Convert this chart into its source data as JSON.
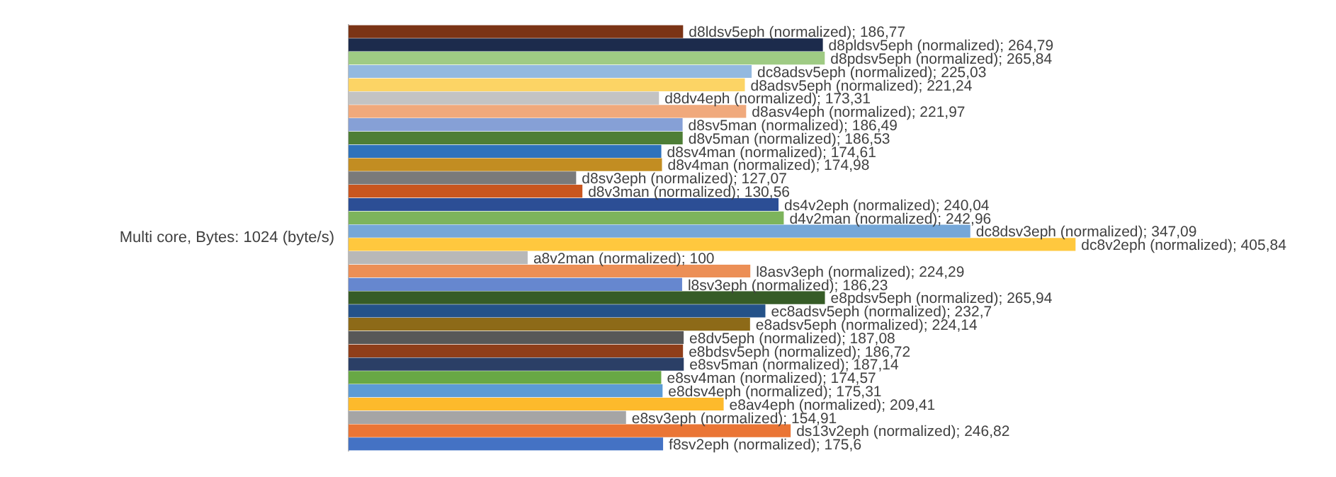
{
  "chart_data": {
    "type": "bar",
    "orientation": "horizontal",
    "ylabel": "Multi core, Bytes: 1024 (byte/s)",
    "categories": [
      null,
      null,
      null,
      null,
      null,
      null,
      null,
      null,
      null,
      null,
      null,
      null,
      null,
      null,
      null,
      null,
      null,
      null,
      null,
      null,
      null,
      null,
      null,
      null,
      null,
      null,
      null,
      null,
      null,
      null,
      null,
      null
    ],
    "values": [
      186.77,
      264.79,
      265.84,
      225.03,
      221.24,
      173.31,
      221.97,
      186.49,
      186.53,
      174.61,
      174.98,
      127.07,
      130.56,
      240.04,
      242.96,
      347.09,
      405.84,
      100,
      224.29,
      186.23,
      265.94,
      232.7,
      224.14,
      187.08,
      186.72,
      187.14,
      174.57,
      175.31,
      209.41,
      154.91,
      246.82,
      175.6
    ],
    "colors": [
      "#7b3416",
      "#1c2b4c",
      "#9fcb84",
      "#93b9df",
      "#fcd465",
      "#c3c3c3",
      "#f0a97c",
      "#86a0d6",
      "#4e7e36",
      "#2e72bb",
      "#c28d22",
      "#7a7a7a",
      "#c9561f",
      "#2c4e95",
      "#7db45c",
      "#75a7d8",
      "#ffc83e",
      "#b8b8b8",
      "#ec8f56",
      "#6687cf",
      "#365c27",
      "#245289",
      "#8d6a18",
      "#585858",
      "#8f3e1a",
      "#2b3f66",
      "#68a845",
      "#5b9bd5",
      "#fdba2c",
      "#a5a5a5",
      "#ea7535",
      "#4472c4"
    ],
    "value_labels": [
      "d8ldsv5eph (normalized); 186,77",
      "d8pldsv5eph (normalized); 264,79",
      "d8pdsv5eph (normalized); 265,84",
      "dc8adsv5eph (normalized); 225,03",
      "d8adsv5eph (normalized); 221,24",
      "d8dv4eph (normalized); 173,31",
      "d8asv4eph (normalized); 221,97",
      "d8sv5man (normalized); 186,49",
      "d8v5man (normalized); 186,53",
      "d8sv4man (normalized); 174,61",
      "d8v4man (normalized); 174,98",
      "d8sv3eph (normalized); 127,07",
      "d8v3man (normalized); 130,56",
      "ds4v2eph (normalized); 240,04",
      "d4v2man (normalized); 242,96",
      "dc8dsv3eph (normalized); 347,09",
      "dc8v2eph (normalized); 405,84",
      "a8v2man (normalized); 100",
      "l8asv3eph (normalized); 224,29",
      "l8sv3eph (normalized); 186,23",
      "e8pdsv5eph (normalized); 265,94",
      "ec8adsv5eph (normalized); 232,7",
      "e8adsv5eph (normalized); 224,14",
      "e8dv5eph (normalized); 187,08",
      "e8bdsv5eph (normalized); 186,72",
      "e8sv5man (normalized); 187,14",
      "e8sv4man (normalized); 174,57",
      "e8dsv4eph (normalized); 175,31",
      "e8av4eph (normalized); 209,41",
      "e8sv3eph (normalized); 154,91",
      "ds13v2eph (normalized); 246,82",
      "f8sv2eph (normalized); 175,6"
    ],
    "legend": false
  }
}
